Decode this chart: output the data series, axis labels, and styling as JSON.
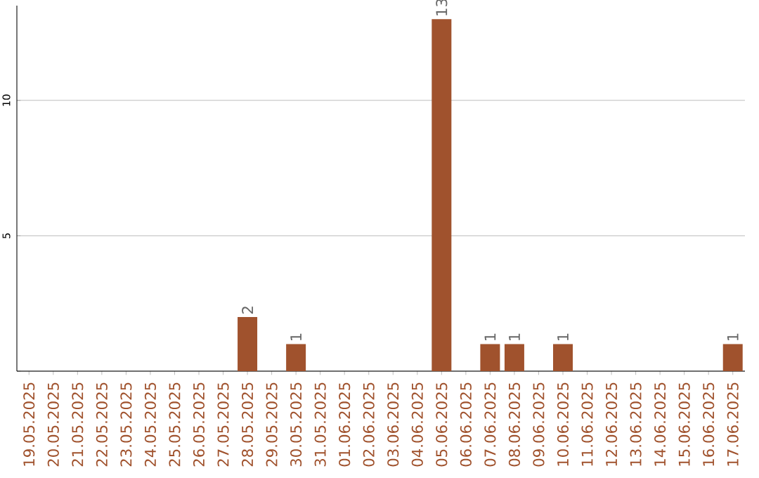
{
  "chart_data": {
    "type": "bar",
    "categories": [
      "19.05.2025",
      "20.05.2025",
      "21.05.2025",
      "22.05.2025",
      "23.05.2025",
      "24.05.2025",
      "25.05.2025",
      "26.05.2025",
      "27.05.2025",
      "28.05.2025",
      "29.05.2025",
      "30.05.2025",
      "31.05.2025",
      "01.06.2025",
      "02.06.2025",
      "03.06.2025",
      "04.06.2025",
      "05.06.2025",
      "06.06.2025",
      "07.06.2025",
      "08.06.2025",
      "09.06.2025",
      "10.06.2025",
      "11.06.2025",
      "12.06.2025",
      "13.06.2025",
      "14.06.2025",
      "15.06.2025",
      "16.06.2025",
      "17.06.2025"
    ],
    "values": [
      0,
      0,
      0,
      0,
      0,
      0,
      0,
      0,
      0,
      2,
      0,
      1,
      0,
      0,
      0,
      0,
      0,
      13,
      0,
      1,
      1,
      0,
      1,
      0,
      0,
      0,
      0,
      0,
      0,
      1
    ],
    "value_labels": [
      null,
      null,
      null,
      null,
      null,
      null,
      null,
      null,
      null,
      "2",
      null,
      "1",
      null,
      null,
      null,
      null,
      null,
      "13",
      null,
      "1",
      "1",
      null,
      "1",
      null,
      null,
      null,
      null,
      null,
      null,
      "1"
    ],
    "color": "#a0522d",
    "ylim": [
      0,
      13.5
    ],
    "yticks": [
      {
        "value": 0,
        "label": null
      },
      5,
      10
    ],
    "grid": "y"
  }
}
